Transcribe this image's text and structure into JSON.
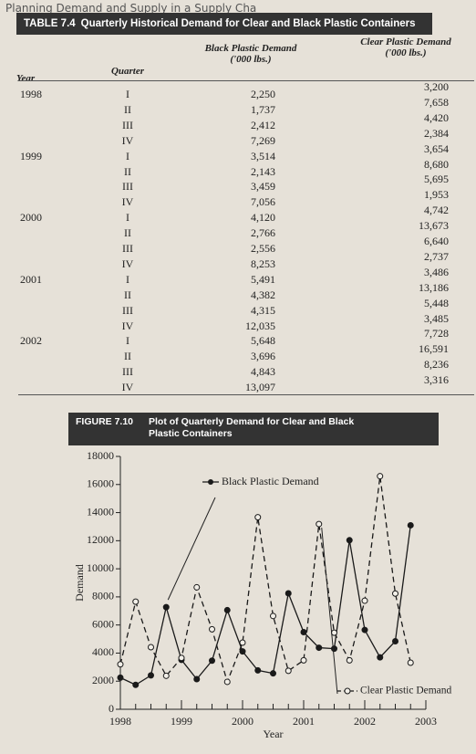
{
  "header": {
    "running_head": "Planning Demand and Supply in a Supply Cha"
  },
  "table": {
    "label": "TABLE 7.4",
    "title": "Quarterly Historical Demand for Clear and Black Plastic Containers",
    "columns": {
      "year": "Year",
      "quarter": "Quarter",
      "black": "Black Plastic Demand",
      "black_unit": "('000 lbs.)",
      "clear": "Clear Plastic Demand",
      "clear_unit": "('000 lbs.)"
    },
    "rows": [
      {
        "year": "1998",
        "quarter": "I",
        "black": "2,250",
        "clear": "3,200"
      },
      {
        "quarter": "II",
        "black": "1,737",
        "clear": "7,658"
      },
      {
        "quarter": "III",
        "black": "2,412",
        "clear": "4,420"
      },
      {
        "quarter": "IV",
        "black": "7,269",
        "clear": "2,384"
      },
      {
        "year": "1999",
        "quarter": "I",
        "black": "3,514",
        "clear": "3,654"
      },
      {
        "quarter": "II",
        "black": "2,143",
        "clear": "8,680"
      },
      {
        "quarter": "III",
        "black": "3,459",
        "clear": "5,695"
      },
      {
        "quarter": "IV",
        "black": "7,056",
        "clear": "1,953"
      },
      {
        "year": "2000",
        "quarter": "I",
        "black": "4,120",
        "clear": "4,742"
      },
      {
        "quarter": "II",
        "black": "2,766",
        "clear": "13,673"
      },
      {
        "quarter": "III",
        "black": "2,556",
        "clear": "6,640"
      },
      {
        "quarter": "IV",
        "black": "8,253",
        "clear": "2,737"
      },
      {
        "year": "2001",
        "quarter": "I",
        "black": "5,491",
        "clear": "3,486"
      },
      {
        "quarter": "II",
        "black": "4,382",
        "clear": "13,186"
      },
      {
        "quarter": "III",
        "black": "4,315",
        "clear": "5,448"
      },
      {
        "quarter": "IV",
        "black": "12,035",
        "clear": "3,485"
      },
      {
        "year": "2002",
        "quarter": "I",
        "black": "5,648",
        "clear": "7,728"
      },
      {
        "quarter": "II",
        "black": "3,696",
        "clear": "16,591"
      },
      {
        "quarter": "III",
        "black": "4,843",
        "clear": "8,236"
      },
      {
        "quarter": "IV",
        "black": "13,097",
        "clear": "3,316"
      }
    ]
  },
  "figure": {
    "label": "FIGURE 7.10",
    "title": "Plot of Quarterly Demand for Clear and Black Plastic Containers",
    "chart_data": {
      "type": "line",
      "xlabel": "Year",
      "ylabel": "Demand",
      "x": [
        1998,
        1998.25,
        1998.5,
        1998.75,
        1999,
        1999.25,
        1999.5,
        1999.75,
        2000,
        2000.25,
        2000.5,
        2000.75,
        2001,
        2001.25,
        2001.5,
        2001.75,
        2002,
        2002.25,
        2002.5,
        2002.75
      ],
      "xlim": [
        1998,
        2003
      ],
      "xticks": [
        1998,
        1999,
        2000,
        2001,
        2002,
        2003
      ],
      "ylim": [
        0,
        18000
      ],
      "yticks": [
        0,
        2000,
        4000,
        6000,
        8000,
        10000,
        12000,
        14000,
        16000,
        18000
      ],
      "series": [
        {
          "name": "Black Plastic Demand",
          "color": "#1a1a1a",
          "marker": "filled",
          "dash": false,
          "values": [
            2250,
            1737,
            2412,
            7269,
            3514,
            2143,
            3459,
            7056,
            4120,
            2766,
            2556,
            8253,
            5491,
            4382,
            4315,
            12035,
            5648,
            3696,
            4843,
            13097
          ]
        },
        {
          "name": "Clear Plastic Demand",
          "color": "#1a1a1a",
          "marker": "open",
          "dash": true,
          "values": [
            3200,
            7658,
            4420,
            2384,
            3654,
            8680,
            5695,
            1953,
            4742,
            13673,
            6640,
            2737,
            3486,
            13186,
            5448,
            3485,
            7728,
            16591,
            8236,
            3316
          ]
        }
      ]
    }
  }
}
